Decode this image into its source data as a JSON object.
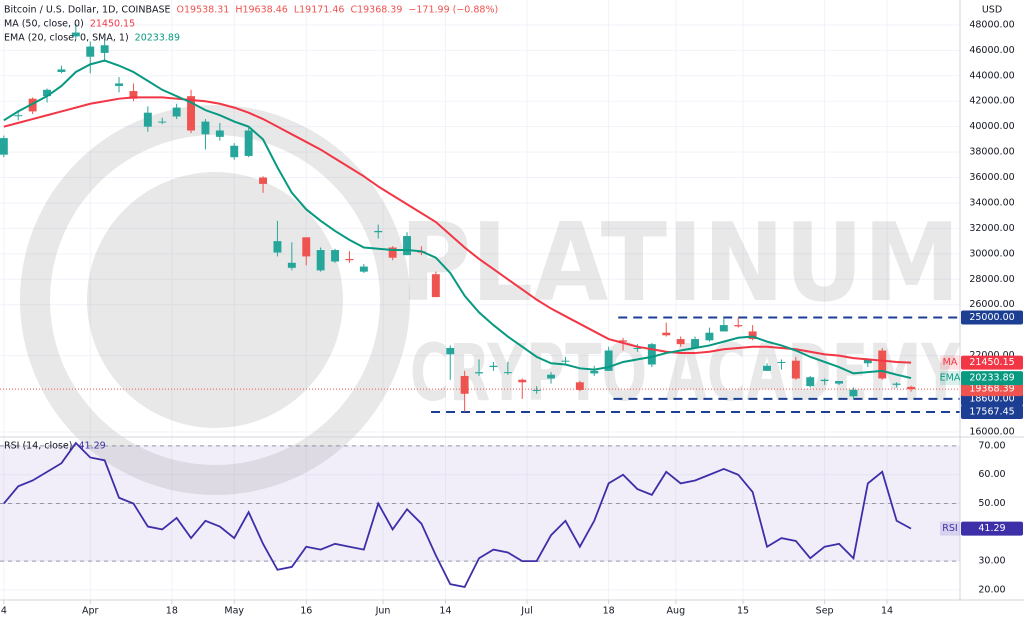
{
  "chart_data": [
    {
      "type": "candlestick",
      "title": "Bitcoin / U.S. Dollar, 1D, COINBASE",
      "ohlc_labels": [
        "O19538.31",
        "H19638.46",
        "L19171.46",
        "C19368.39",
        "−171.99 (−0.88%)"
      ],
      "currency": "USD",
      "x": [
        0,
        3,
        6,
        9,
        12,
        15,
        18,
        21,
        24,
        27,
        30,
        33,
        36,
        39,
        42,
        45,
        48,
        51,
        54,
        57,
        60,
        63,
        66,
        69,
        72,
        75,
        78,
        81,
        84,
        87,
        90,
        93,
        96,
        99,
        102,
        105,
        108,
        111,
        114,
        117,
        120,
        123,
        126,
        129,
        132,
        135,
        138,
        141,
        144,
        147,
        150,
        153,
        156,
        159,
        162,
        165,
        168,
        171,
        174,
        177,
        180,
        183,
        186,
        189
      ],
      "open": [
        37800,
        40900,
        42200,
        42400,
        44300,
        47100,
        45500,
        45800,
        43200,
        42800,
        40000,
        40400,
        40800,
        42400,
        39400,
        39200,
        37600,
        37700,
        36000,
        30100,
        28900,
        31300,
        28700,
        29400,
        29600,
        28600,
        31700,
        30500,
        29900,
        30200,
        28400,
        22100,
        20400,
        20600,
        21100,
        20700,
        20100,
        19300,
        20200,
        21600,
        19900,
        20600,
        20800,
        23200,
        22600,
        21300,
        23800,
        23300,
        22600,
        23200,
        23900,
        24400,
        23900,
        20800,
        21500,
        21600,
        19600,
        20000,
        19800,
        18800,
        21400,
        22400,
        19700,
        19538.31
      ],
      "high": [
        39300,
        41300,
        42300,
        43000,
        44800,
        48100,
        46700,
        46900,
        43900,
        43400,
        41600,
        40700,
        41800,
        42900,
        40600,
        40300,
        38700,
        39900,
        36100,
        32600,
        30900,
        31300,
        30500,
        30400,
        30200,
        29200,
        32300,
        30600,
        31700,
        30600,
        28600,
        22800,
        20800,
        21700,
        21500,
        21500,
        20200,
        19600,
        20700,
        21900,
        20000,
        21200,
        22700,
        23400,
        22900,
        23000,
        24600,
        23500,
        23500,
        24200,
        24900,
        25000,
        24400,
        21400,
        21700,
        21900,
        20400,
        20200,
        20000,
        19500,
        21800,
        22600,
        19900,
        19638.46
      ],
      "low": [
        37600,
        40500,
        41000,
        41900,
        44200,
        46900,
        44200,
        45100,
        42700,
        42000,
        39600,
        40200,
        40600,
        39500,
        38200,
        38900,
        37400,
        37600,
        34800,
        29800,
        28700,
        29100,
        28600,
        29300,
        29300,
        28500,
        31200,
        29500,
        29900,
        29900,
        26600,
        20100,
        17600,
        20400,
        20800,
        20500,
        18600,
        19000,
        19800,
        21300,
        19200,
        20400,
        20800,
        22400,
        22300,
        21100,
        23500,
        22700,
        22600,
        23100,
        23900,
        24200,
        23200,
        20800,
        20900,
        20100,
        19500,
        19700,
        19700,
        18600,
        21100,
        20100,
        19500,
        19171.46
      ],
      "close": [
        39100,
        40900,
        41200,
        42900,
        44500,
        47400,
        46300,
        46400,
        43400,
        42200,
        41100,
        40400,
        41500,
        39700,
        40400,
        39700,
        38500,
        39700,
        35500,
        31000,
        29300,
        29800,
        30300,
        30300,
        29500,
        29000,
        31800,
        29700,
        31400,
        30100,
        26600,
        22600,
        19000,
        20700,
        21200,
        20700,
        19900,
        19300,
        20500,
        21600,
        19300,
        20800,
        22400,
        23100,
        22600,
        22900,
        23600,
        22900,
        23300,
        23800,
        24400,
        24300,
        23300,
        21200,
        21500,
        20200,
        20300,
        20100,
        20000,
        19300,
        21700,
        20200,
        19800,
        19368.39
      ],
      "up_color": "#26a69a",
      "down_color": "#ef5350",
      "series": [
        {
          "name": "MA",
          "label": "MA (50, close, 0)",
          "color": "#f23645",
          "last_value": 21450.15,
          "values": [
            40000,
            40300,
            40600,
            40900,
            41200,
            41500,
            41800,
            42000,
            42200,
            42300,
            42300,
            42300,
            42200,
            42100,
            42000,
            41800,
            41500,
            41100,
            40600,
            40000,
            39400,
            38800,
            38200,
            37500,
            36800,
            36100,
            35300,
            34600,
            33900,
            33200,
            32500,
            31500,
            30500,
            29600,
            28800,
            28000,
            27200,
            26400,
            25700,
            25100,
            24500,
            23900,
            23300,
            23000,
            22700,
            22500,
            22300,
            22200,
            22200,
            22300,
            22500,
            22600,
            22700,
            22700,
            22600,
            22500,
            22300,
            22100,
            22000,
            21800,
            21700,
            21600,
            21500,
            21450.15
          ]
        },
        {
          "name": "EMA",
          "label": "EMA (20, close, 0, SMA, 1)",
          "color": "#089981",
          "last_value": 20233.89,
          "values": [
            40500,
            41200,
            41800,
            42400,
            43200,
            44300,
            44900,
            45200,
            44800,
            44300,
            43600,
            42900,
            42400,
            41900,
            41300,
            40900,
            40400,
            40000,
            39000,
            36800,
            34800,
            33500,
            32600,
            31800,
            31100,
            30500,
            30400,
            30300,
            30300,
            30200,
            29700,
            28500,
            26700,
            25400,
            24400,
            23500,
            22700,
            21900,
            21400,
            21300,
            21000,
            20900,
            21100,
            21500,
            21700,
            21900,
            22200,
            22400,
            22600,
            22800,
            23100,
            23400,
            23500,
            23100,
            22800,
            22400,
            21900,
            21500,
            21100,
            20600,
            20700,
            20800,
            20500,
            20233.89
          ]
        }
      ],
      "last_price": 19368.39,
      "levels": [
        {
          "value": 25000,
          "label": "25000.00",
          "start": 128
        },
        {
          "value": 18600,
          "label": "18600.00",
          "start": 127
        },
        {
          "value": 17567.45,
          "label": "17567.45",
          "start": 89
        }
      ],
      "level_color": "#1c3f94",
      "xlim": [
        -0.8,
        199.2
      ],
      "ylim": [
        15600,
        49960
      ],
      "yticks": [
        {
          "value": 16000,
          "label": "16000.00"
        },
        {
          "value": 22000,
          "label": "22000.00"
        },
        {
          "value": 26000,
          "label": "26000.00"
        },
        {
          "value": 28000,
          "label": "28000.00"
        },
        {
          "value": 30000,
          "label": "30000.00"
        },
        {
          "value": 32000,
          "label": "32000.00"
        },
        {
          "value": 34000,
          "label": "34000.00"
        },
        {
          "value": 36000,
          "label": "36000.00"
        },
        {
          "value": 38000,
          "label": "38000.00"
        },
        {
          "value": 40000,
          "label": "40000.00"
        },
        {
          "value": 42000,
          "label": "42000.00"
        },
        {
          "value": 44000,
          "label": "44000.00"
        },
        {
          "value": 46000,
          "label": "46000.00"
        },
        {
          "value": 48000,
          "label": "48000.00"
        }
      ],
      "watermark": [
        "PLATINUM",
        "CRYPTO ACADEMY"
      ]
    },
    {
      "type": "line",
      "title": "RSI (14, close)",
      "series": [
        {
          "name": "RSI",
          "color": "#3d2fa8",
          "last_value": 41.29,
          "values": [
            50,
            56,
            58,
            61,
            64,
            71,
            66,
            65,
            52,
            50,
            42,
            41,
            45,
            38,
            44,
            42,
            38,
            47,
            36,
            27,
            28,
            35,
            34,
            36,
            35,
            34,
            50,
            41,
            48,
            43,
            32,
            22,
            21,
            31,
            34,
            33,
            30,
            30,
            39,
            44,
            35,
            44,
            57,
            60,
            55,
            53,
            61,
            57,
            58,
            60,
            62,
            60,
            54,
            35,
            38,
            37,
            31,
            35,
            36,
            31,
            57,
            61,
            44,
            41.29
          ]
        }
      ],
      "band": [
        30,
        70
      ],
      "band_color": "#7e57c2",
      "dashed_levels": [
        70,
        50,
        30
      ],
      "ylim": [
        16.5,
        73.1
      ],
      "yticks": [
        {
          "value": 70,
          "label": "70.00"
        },
        {
          "value": 60,
          "label": "60.00"
        },
        {
          "value": 50,
          "label": "50.00"
        },
        {
          "value": 30,
          "label": "30.00"
        },
        {
          "value": 20,
          "label": "20.00"
        }
      ],
      "xlim": [
        -0.8,
        199.2
      ],
      "xticks": [
        {
          "value": 0,
          "label": "4"
        },
        {
          "value": 18,
          "label": "Apr"
        },
        {
          "value": 35,
          "label": "18"
        },
        {
          "value": 48,
          "label": "May"
        },
        {
          "value": 63,
          "label": "16"
        },
        {
          "value": 79,
          "label": "Jun"
        },
        {
          "value": 92,
          "label": "14"
        },
        {
          "value": 109,
          "label": "Jul"
        },
        {
          "value": 126,
          "label": "18"
        },
        {
          "value": 140,
          "label": "Aug"
        },
        {
          "value": 154,
          "label": "15"
        },
        {
          "value": 171,
          "label": "Sep"
        },
        {
          "value": 184,
          "label": "14"
        }
      ]
    }
  ]
}
